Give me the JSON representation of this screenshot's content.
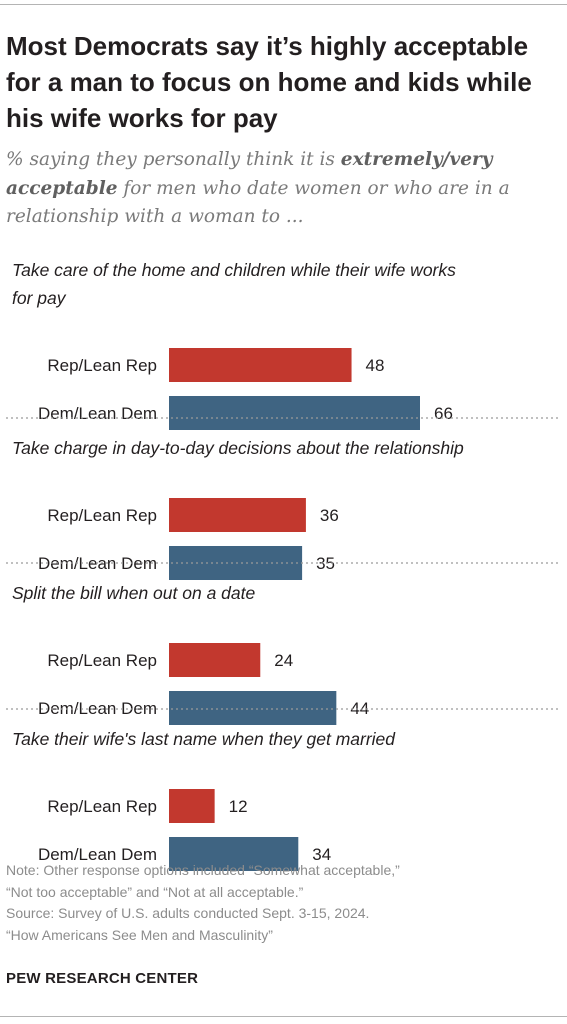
{
  "title": "Most Democrats say it’s highly acceptable for a man to focus on home and kids while his wife works for pay",
  "subtitle": {
    "before": "% saying they personally think it is ",
    "emphasis": "extremely/very acceptable",
    "after": " for men who date women or who are in a relationship with a woman to ..."
  },
  "colors": {
    "rep": "#c2382e",
    "dem": "#3f6482",
    "divider": "#9a9a9a"
  },
  "chart_data": {
    "type": "bar",
    "orientation": "horizontal",
    "value_max": 66,
    "series": [
      {
        "name": "Rep/Lean Rep",
        "color": "#c2382e"
      },
      {
        "name": "Dem/Lean Dem",
        "color": "#3f6482"
      }
    ],
    "groups": [
      {
        "label": [
          "Take care of the home and children while their wife works",
          "for pay"
        ],
        "values": [
          48,
          66
        ]
      },
      {
        "label": [
          "Take charge in day-to-day decisions about the relationship"
        ],
        "values": [
          36,
          35
        ]
      },
      {
        "label": [
          "Split the bill when out on a date"
        ],
        "values": [
          24,
          44
        ]
      },
      {
        "label": [
          "Take their wife's last name when they get married"
        ],
        "values": [
          12,
          34
        ]
      }
    ]
  },
  "footer": {
    "note_line1": "Note: Other response options included “Somewhat acceptable,”",
    "note_line2": "“Not too acceptable” and “Not at all acceptable.”",
    "source_line1": "Source: Survey of U.S. adults conducted Sept. 3-15, 2024.",
    "source_line2": "“How Americans See Men and Masculinity”"
  },
  "brand": "PEW RESEARCH CENTER"
}
